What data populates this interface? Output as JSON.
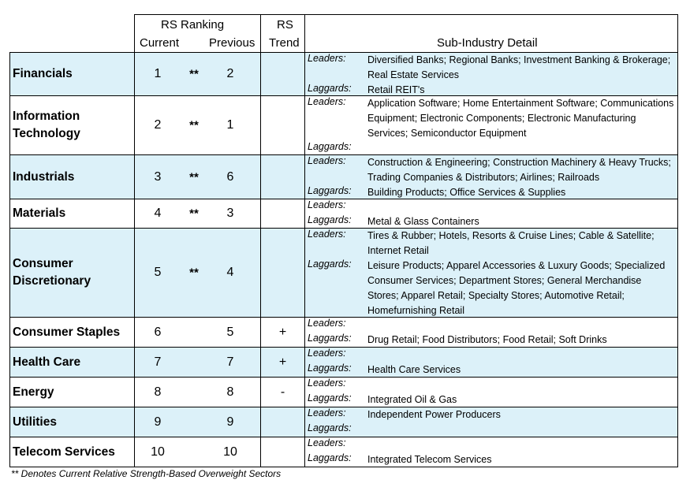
{
  "header": {
    "rs_ranking": "RS Ranking",
    "current": "Current",
    "previous": "Previous",
    "rs": "RS",
    "trend": "Trend",
    "sub_industry": "Sub-Industry Detail"
  },
  "labels": {
    "leaders": "Leaders:",
    "laggards": "Laggards:"
  },
  "rows": [
    {
      "sector": "Financials",
      "current": "1",
      "star": "**",
      "previous": "2",
      "trend": "",
      "leaders": "Diversified Banks; Regional Banks; Investment Banking & Brokerage; Real Estate Services",
      "laggards": "Retail REIT's"
    },
    {
      "sector": "Information Technology",
      "current": "2",
      "star": "**",
      "previous": "1",
      "trend": "",
      "leaders": "Application Software; Home Entertainment Software; Communications Equipment; Electronic Components; Electronic Manufacturing Services; Semiconductor Equipment",
      "laggards": ""
    },
    {
      "sector": "Industrials",
      "current": "3",
      "star": "**",
      "previous": "6",
      "trend": "",
      "leaders": "Construction & Engineering; Construction Machinery & Heavy Trucks; Trading Companies & Distributors; Airlines; Railroads",
      "laggards": "Building Products; Office Services & Supplies"
    },
    {
      "sector": "Materials",
      "current": "4",
      "star": "**",
      "previous": "3",
      "trend": "",
      "leaders": "",
      "laggards": "Metal & Glass Containers"
    },
    {
      "sector": "Consumer Discretionary",
      "current": "5",
      "star": "**",
      "previous": "4",
      "trend": "",
      "leaders": "Tires & Rubber; Hotels, Resorts & Cruise Lines; Cable & Satellite; Internet Retail",
      "laggards": "Leisure Products; Apparel Accessories & Luxury Goods; Specialized Consumer Services; Department Stores; General Merchandise Stores; Apparel Retail; Specialty Stores; Automotive Retail; Homefurnishing Retail"
    },
    {
      "sector": "Consumer Staples",
      "current": "6",
      "star": "",
      "previous": "5",
      "trend": "+",
      "leaders": "",
      "laggards": "Drug Retail; Food Distributors; Food Retail; Soft Drinks"
    },
    {
      "sector": "Health Care",
      "current": "7",
      "star": "",
      "previous": "7",
      "trend": "+",
      "leaders": "",
      "laggards": "Health Care Services"
    },
    {
      "sector": "Energy",
      "current": "8",
      "star": "",
      "previous": "8",
      "trend": "-",
      "leaders": "",
      "laggards": "Integrated Oil & Gas"
    },
    {
      "sector": "Utilities",
      "current": "9",
      "star": "",
      "previous": "9",
      "trend": "",
      "leaders": "Independent Power Producers",
      "laggards": ""
    },
    {
      "sector": "Telecom Services",
      "current": "10",
      "star": "",
      "previous": "10",
      "trend": "",
      "leaders": "",
      "laggards": "Integrated Telecom Services"
    }
  ],
  "footnote": "** Denotes Current Relative Strength-Based Overweight Sectors",
  "colors": {
    "shade": "#dcf1f9",
    "border": "#000000"
  }
}
